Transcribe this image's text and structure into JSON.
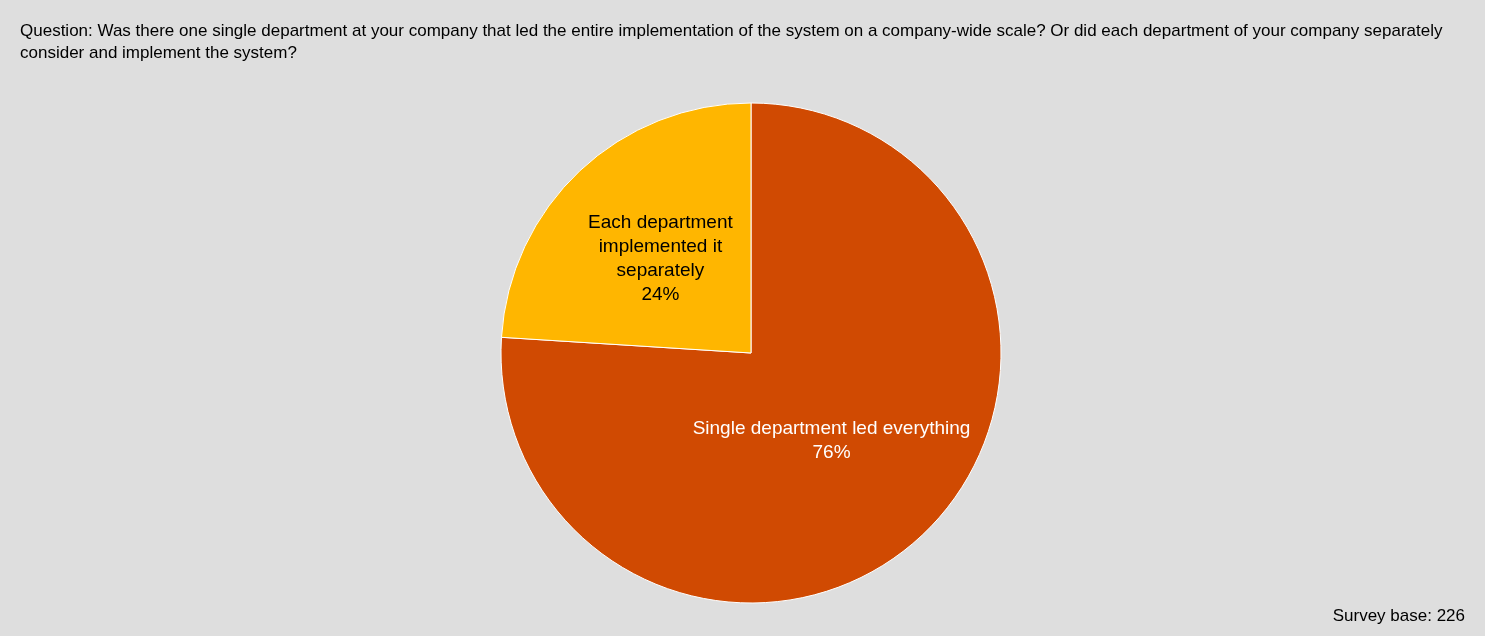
{
  "chart_data": {
    "type": "pie",
    "title": "Question: Was there one single department at your company that led the entire implementation of the system on a company-wide scale? Or did each department of your company separately consider and implement the system?",
    "categories": [
      "Single department led everything",
      "Each department implemented it separately"
    ],
    "values": [
      76,
      24
    ],
    "value_labels": [
      "76%",
      "24%"
    ],
    "colors": [
      "#d04a02",
      "#ffb600"
    ],
    "annotations": [
      "Survey base: 226"
    ]
  }
}
